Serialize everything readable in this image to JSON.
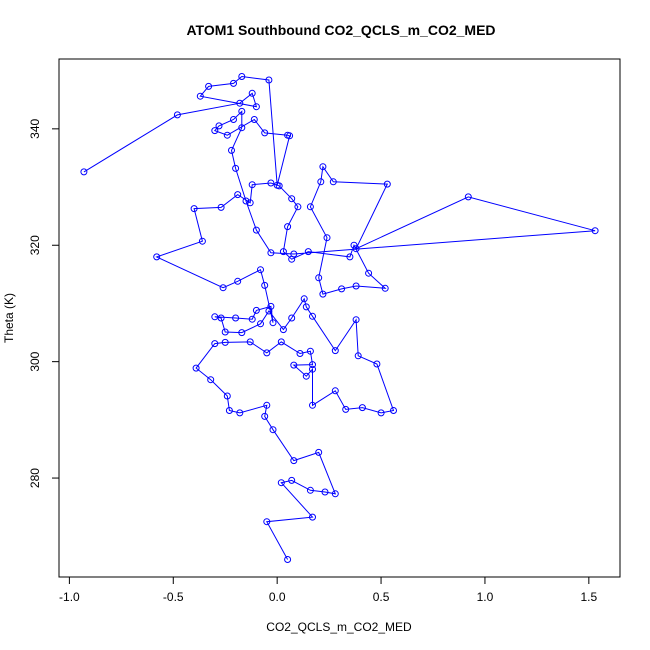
{
  "chart_data": {
    "type": "line",
    "title": "ATOM1 Southbound CO2_QCLS_m_CO2_MED",
    "xlabel": "CO2_QCLS_m_CO2_MED",
    "ylabel": "Theta (K)",
    "xlim": [
      -1.05,
      1.65
    ],
    "ylim": [
      263,
      352
    ],
    "xticks": [
      -1.0,
      -0.5,
      0.0,
      0.5,
      1.0,
      1.5
    ],
    "xtick_labels": [
      "-1.0",
      "-0.5",
      "0.0",
      "0.5",
      "1.0",
      "1.5"
    ],
    "yticks": [
      280,
      300,
      320,
      340
    ],
    "ytick_labels": [
      "280",
      "300",
      "320",
      "340"
    ],
    "grid": false,
    "legend": "none",
    "series_color": "#0000ff",
    "markers": "open-circle",
    "series": [
      {
        "points": [
          [
            0.05,
            266.0
          ],
          [
            -0.05,
            272.5
          ],
          [
            0.17,
            273.3
          ],
          [
            0.02,
            279.2
          ],
          [
            0.07,
            279.6
          ],
          [
            0.16,
            277.9
          ],
          [
            0.23,
            277.6
          ],
          [
            0.28,
            277.3
          ],
          [
            0.2,
            284.4
          ],
          [
            0.08,
            283.0
          ],
          [
            -0.02,
            288.3
          ],
          [
            -0.06,
            290.6
          ],
          [
            -0.05,
            292.5
          ],
          [
            -0.18,
            291.2
          ],
          [
            -0.23,
            291.6
          ],
          [
            -0.24,
            294.1
          ],
          [
            -0.32,
            296.9
          ],
          [
            -0.39,
            298.9
          ],
          [
            -0.3,
            303.1
          ],
          [
            -0.25,
            303.3
          ],
          [
            -0.13,
            303.4
          ],
          [
            -0.05,
            301.5
          ],
          [
            0.02,
            303.4
          ],
          [
            0.11,
            301.4
          ],
          [
            0.16,
            301.8
          ],
          [
            0.17,
            299.5
          ],
          [
            0.08,
            299.4
          ],
          [
            0.14,
            297.5
          ],
          [
            0.17,
            298.7
          ],
          [
            0.17,
            292.5
          ],
          [
            0.28,
            295.0
          ],
          [
            0.33,
            291.8
          ],
          [
            0.41,
            292.1
          ],
          [
            0.5,
            291.2
          ],
          [
            0.56,
            291.6
          ],
          [
            0.48,
            299.6
          ],
          [
            0.39,
            301.0
          ],
          [
            0.38,
            307.2
          ],
          [
            0.28,
            301.9
          ],
          [
            0.17,
            307.8
          ],
          [
            0.14,
            309.4
          ],
          [
            0.13,
            310.8
          ],
          [
            0.07,
            307.5
          ],
          [
            0.03,
            305.5
          ],
          [
            -0.04,
            308.7
          ],
          [
            -0.08,
            306.5
          ],
          [
            -0.17,
            305.0
          ],
          [
            -0.25,
            305.1
          ],
          [
            -0.27,
            307.5
          ],
          [
            -0.3,
            307.7
          ],
          [
            -0.2,
            307.5
          ],
          [
            -0.12,
            307.3
          ],
          [
            -0.1,
            308.8
          ],
          [
            -0.03,
            309.5
          ],
          [
            -0.02,
            306.7
          ],
          [
            -0.06,
            313.1
          ],
          [
            -0.08,
            315.8
          ],
          [
            -0.19,
            313.8
          ],
          [
            -0.26,
            312.7
          ],
          [
            -0.58,
            318.0
          ],
          [
            -0.36,
            320.7
          ],
          [
            -0.4,
            326.3
          ],
          [
            -0.27,
            326.5
          ],
          [
            -0.19,
            328.7
          ],
          [
            -0.13,
            327.3
          ],
          [
            -0.12,
            330.4
          ],
          [
            -0.03,
            330.7
          ],
          [
            0.01,
            330.2
          ],
          [
            0.07,
            328.0
          ],
          [
            0.1,
            326.6
          ],
          [
            0.05,
            323.2
          ],
          [
            0.03,
            318.9
          ],
          [
            0.07,
            317.6
          ],
          [
            0.15,
            318.9
          ],
          [
            0.35,
            318.0
          ],
          [
            0.37,
            320.0
          ],
          [
            0.44,
            315.2
          ],
          [
            0.52,
            312.6
          ],
          [
            0.38,
            313.0
          ],
          [
            0.31,
            312.5
          ],
          [
            0.22,
            311.6
          ],
          [
            0.2,
            314.4
          ],
          [
            0.24,
            321.3
          ],
          [
            0.16,
            326.6
          ],
          [
            0.21,
            330.9
          ],
          [
            0.22,
            333.5
          ],
          [
            0.27,
            330.9
          ],
          [
            0.53,
            330.5
          ],
          [
            0.38,
            319.4
          ],
          [
            0.92,
            328.3
          ],
          [
            1.53,
            322.5
          ],
          [
            0.08,
            318.5
          ],
          [
            -0.03,
            318.7
          ],
          [
            -0.1,
            322.6
          ],
          [
            -0.15,
            327.6
          ],
          [
            -0.2,
            333.2
          ],
          [
            -0.22,
            336.3
          ],
          [
            -0.17,
            340.2
          ],
          [
            -0.17,
            343.0
          ],
          [
            -0.21,
            341.6
          ],
          [
            -0.28,
            340.5
          ],
          [
            -0.3,
            339.7
          ],
          [
            -0.24,
            338.9
          ],
          [
            -0.11,
            341.6
          ],
          [
            -0.06,
            339.3
          ],
          [
            0.05,
            338.9
          ],
          [
            0.06,
            338.8
          ],
          [
            0.0,
            330.3
          ],
          [
            -0.04,
            348.4
          ],
          [
            -0.17,
            349.0
          ],
          [
            -0.21,
            347.8
          ],
          [
            -0.33,
            347.3
          ],
          [
            -0.37,
            345.6
          ],
          [
            -0.1,
            343.8
          ],
          [
            -0.12,
            346.1
          ],
          [
            -0.18,
            344.4
          ],
          [
            -0.48,
            342.4
          ],
          [
            -0.93,
            332.6
          ]
        ]
      }
    ]
  }
}
